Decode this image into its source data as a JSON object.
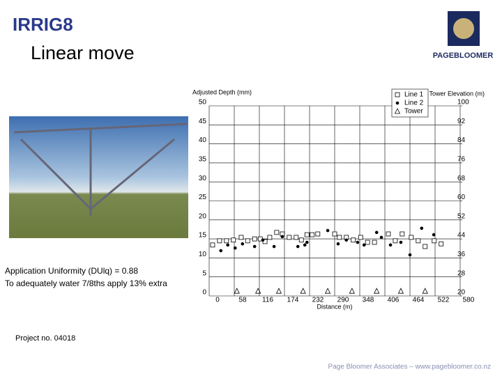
{
  "slide": {
    "logo_left": "IRRIG8",
    "logo_right": "PAGEBLOOMER",
    "title": "Linear move",
    "notes": [
      "Application Uniformity (DUlq) = 0.88",
      "To adequately water 7/8ths apply 13% extra"
    ],
    "project": "Project no. 04018",
    "footer": "Page Bloomer Associates – www.pagebloomer.co.nz"
  },
  "chart_data": {
    "type": "scatter",
    "ylabel": "Adjusted Depth (mm)",
    "y2label": "Tower Elevation (m)",
    "xlabel": "Distance (m)",
    "xlim": [
      0,
      580
    ],
    "xticks": [
      0,
      58,
      116,
      174,
      232,
      290,
      348,
      406,
      464,
      522,
      580
    ],
    "ylim": [
      0,
      50
    ],
    "yticks": [
      0,
      5,
      10,
      15,
      20,
      25,
      30,
      35,
      40,
      45,
      50
    ],
    "y2lim": [
      20,
      100
    ],
    "y2ticks": [
      20,
      28,
      36,
      44,
      52,
      60,
      68,
      76,
      84,
      92,
      100
    ],
    "grid": true,
    "legend": "top-right",
    "series": [
      {
        "name": "Line 1",
        "marker": "square",
        "color": "#000000",
        "x": [
          8,
          24,
          40,
          56,
          74,
          89,
          105,
          118,
          129,
          140,
          156,
          169,
          185,
          201,
          213,
          226,
          238,
          251,
          290,
          301,
          317,
          333,
          350,
          366,
          382,
          414,
          430,
          446,
          467,
          483,
          499,
          520,
          536
        ],
        "values": [
          13.4,
          14.5,
          14.5,
          14.7,
          15.4,
          14.5,
          15.0,
          15.0,
          14.3,
          15.4,
          16.7,
          16.3,
          15.4,
          15.4,
          14.7,
          16.1,
          16.1,
          16.3,
          16.3,
          15.4,
          15.4,
          14.7,
          15.4,
          14.1,
          14.1,
          16.3,
          14.5,
          16.3,
          15.4,
          14.5,
          13.0,
          14.5,
          13.7
        ]
      },
      {
        "name": "Line 2",
        "marker": "circle",
        "color": "#000000",
        "x": [
          27,
          43,
          60,
          77,
          105,
          124,
          150,
          169,
          205,
          221,
          226,
          274,
          298,
          317,
          343,
          358,
          387,
          398,
          419,
          443,
          464,
          491,
          519
        ],
        "values": [
          11.9,
          13.4,
          12.6,
          13.7,
          13.0,
          14.7,
          13.0,
          15.6,
          13.0,
          13.4,
          14.1,
          17.2,
          13.7,
          14.7,
          14.1,
          13.4,
          16.7,
          15.4,
          13.4,
          14.1,
          10.8,
          17.8,
          16.1
        ]
      },
      {
        "name": "Tower",
        "marker": "triangle",
        "color": "#000000",
        "axis": "y2",
        "x": [
          64,
          113,
          161,
          217,
          274,
          330,
          387,
          443,
          499
        ],
        "values": [
          22,
          22,
          22,
          22,
          22,
          22,
          22,
          22,
          22
        ]
      }
    ]
  }
}
